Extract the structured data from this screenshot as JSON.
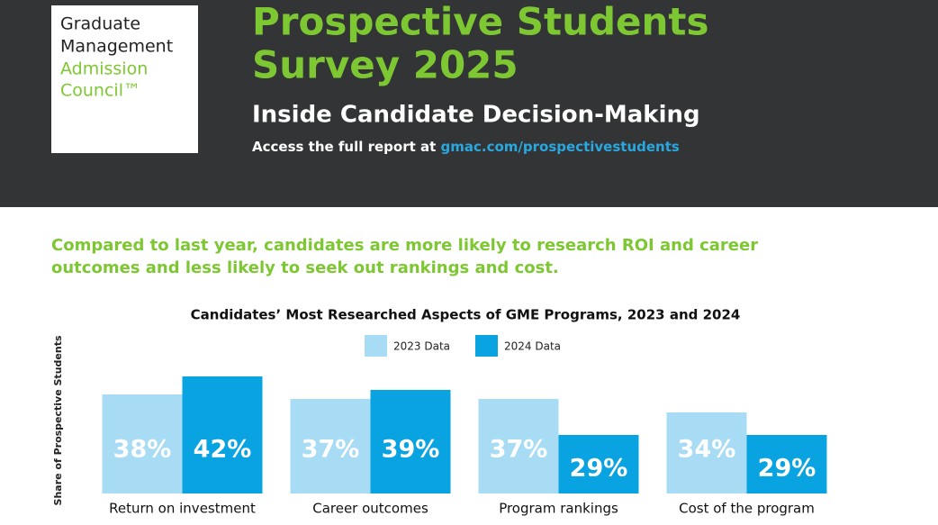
{
  "logo": [
    "Graduate",
    "Management",
    "Admission",
    "Council™"
  ],
  "header": {
    "title_line1": "Prospective Students",
    "title_line2": "Survey 2025",
    "subtitle": "Inside Candidate Decision-Making",
    "access_text": "Access the full report at",
    "access_link": "gmac.com/prospectivestudents"
  },
  "headline": [
    "Compared to last year, candidates are more likely to research ROI and career",
    "outcomes and less likely to seek out rankings and cost."
  ],
  "chart_data": {
    "type": "bar",
    "title": "Candidates’ Most Researched Aspects of GME Programs, 2023 and 2024",
    "ylabel": "Share of Prospective Students",
    "categories": [
      "Return on investment",
      "Career outcomes",
      "Program rankings",
      "Cost of the program"
    ],
    "series": [
      {
        "name": "2023 Data",
        "color": "#a8dcf5",
        "values": [
          38,
          37,
          37,
          34
        ],
        "value_labels": [
          "38%",
          "37%",
          "37%",
          "34%"
        ]
      },
      {
        "name": "2024 Data",
        "color": "#0aa3e2",
        "values": [
          42,
          39,
          29,
          29
        ],
        "value_labels": [
          "42%",
          "39%",
          "29%",
          "29%"
        ]
      }
    ],
    "ylim": [
      16,
      45
    ]
  }
}
